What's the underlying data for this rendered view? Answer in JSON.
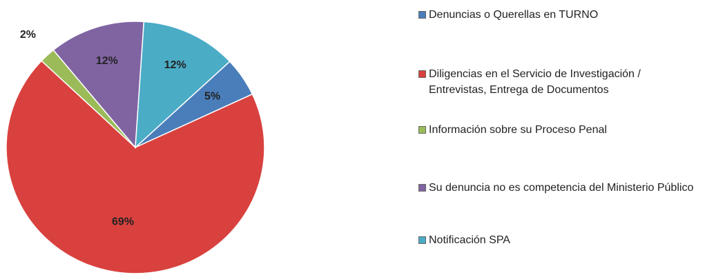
{
  "chart_data": {
    "type": "pie",
    "categories": [
      "Denuncias o Querellas en TURNO",
      "Diligencias en el Servicio de Investigación / Entrevistas, Entrega de Documentos",
      "Información sobre su Proceso Penal",
      "Su denuncia no es competencia del Ministerio Público",
      "Notificación SPA"
    ],
    "values": [
      5,
      69,
      2,
      12,
      12
    ],
    "value_labels": [
      "5%",
      "69%",
      "2%",
      "12%",
      "12%"
    ],
    "colors": [
      "#4a7ebb",
      "#d9413e",
      "#9bbb59",
      "#8064a2",
      "#4bacc6"
    ],
    "legend": "right"
  }
}
